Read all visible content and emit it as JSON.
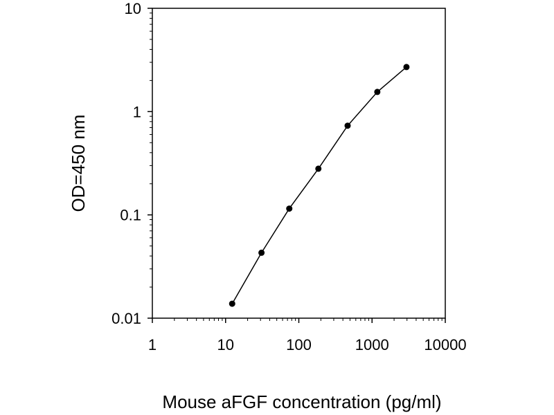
{
  "chart_data": {
    "type": "line",
    "title": "",
    "xlabel": "Mouse aFGF concentration (pg/ml)",
    "ylabel": "OD=450 nm",
    "xscale": "log",
    "yscale": "log",
    "xlim": [
      1,
      10000
    ],
    "ylim": [
      0.01,
      10
    ],
    "x_ticks": [
      "1",
      "10",
      "100",
      "1000",
      "10000"
    ],
    "y_ticks": [
      "0.01",
      "0.1",
      "1",
      "10"
    ],
    "grid": false,
    "legend": "none",
    "series": [
      {
        "x": [
          12.3,
          30.9,
          74.1,
          185,
          464,
          1180,
          2950
        ],
        "y": [
          0.0138,
          0.043,
          0.115,
          0.28,
          0.73,
          1.55,
          2.7
        ]
      }
    ],
    "colors": {
      "line": "#000000",
      "marker": "#000000",
      "axis": "#000000"
    }
  }
}
